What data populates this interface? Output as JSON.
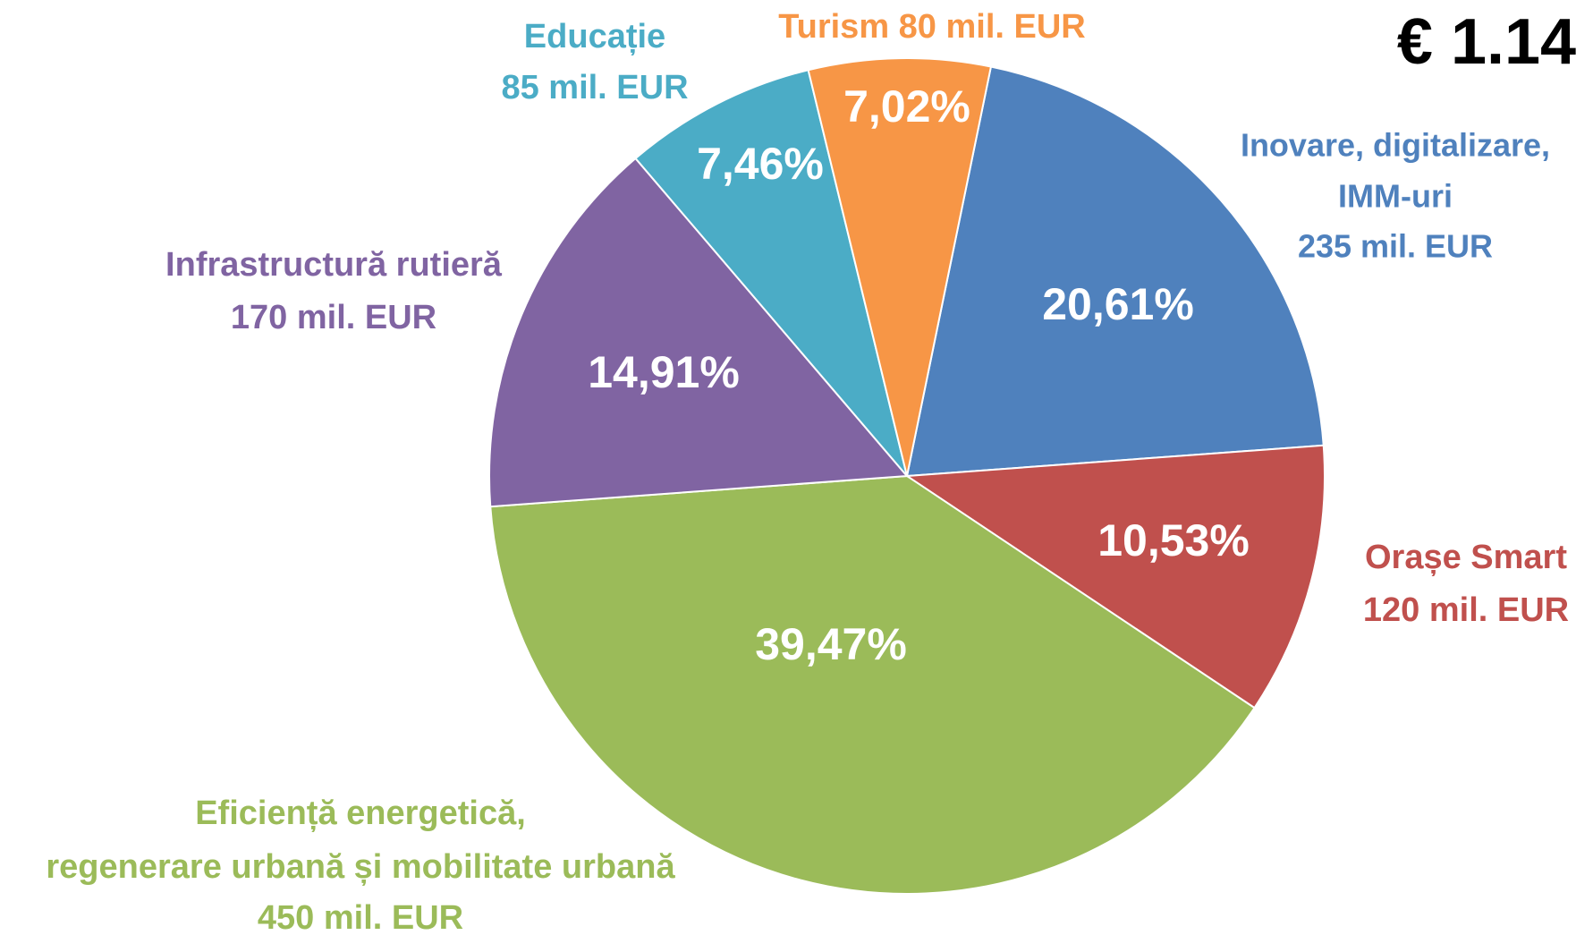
{
  "chart_data": {
    "type": "pie",
    "title": "€ 1.14",
    "categories": [
      [
        "Inovare, digitalizare,",
        "IMM-uri",
        "235 mil. EUR"
      ],
      [
        "Orașe Smart",
        "120 mil. EUR"
      ],
      [
        "Eficiență energetică,",
        "regenerare urbană și mobilitate urbană",
        "450 mil. EUR"
      ],
      [
        "Infrastructură rutieră",
        "170 mil. EUR"
      ],
      [
        "Educație",
        "85 mil. EUR"
      ],
      [
        "Turism 80 mil. EUR"
      ]
    ],
    "values": [
      20.61,
      10.53,
      39.47,
      14.91,
      7.46,
      7.02
    ],
    "value_labels": [
      "20,61%",
      "10,53%",
      "39,47%",
      "14,91%",
      "7,46%",
      "7,02%"
    ],
    "colors": [
      "#4f81bd",
      "#c0504d",
      "#9bbb59",
      "#8064a2",
      "#4bacc6",
      "#f79646"
    ]
  }
}
